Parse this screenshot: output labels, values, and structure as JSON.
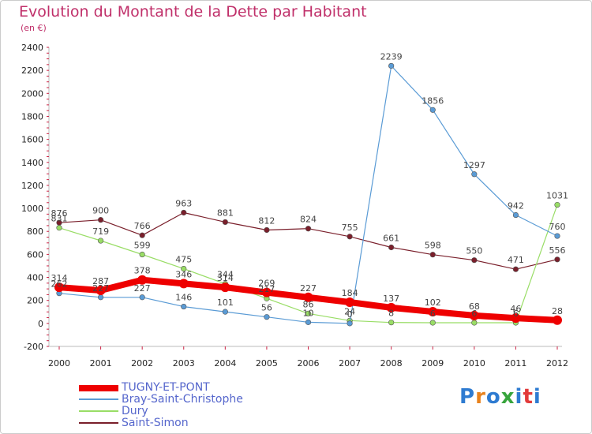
{
  "title": "Evolution du Montant de la Dette par Habitant",
  "subtitle": "(en €)",
  "brand": {
    "text": "Proxiti",
    "colors": [
      "#2e7bd1",
      "#e8821d",
      "#2e7bd1",
      "#37a43c",
      "#2e7bd1",
      "#e23a3a",
      "#2e7bd1"
    ]
  },
  "chart_data": {
    "type": "line",
    "x": [
      "2000",
      "2001",
      "2002",
      "2003",
      "2004",
      "2005",
      "2006",
      "2007",
      "2008",
      "2009",
      "2010",
      "2011",
      "2012"
    ],
    "ylim": [
      -200,
      2400
    ],
    "yticks": [
      -200,
      0,
      200,
      400,
      600,
      800,
      1000,
      1200,
      1400,
      1600,
      1800,
      2000,
      2200,
      2400
    ],
    "grid": false,
    "legend_position": "bottom-left",
    "series": [
      {
        "name": "TUGNY-ET-PONT",
        "color": "#ee0000",
        "width": 8,
        "values": [
          314,
          287,
          378,
          346,
          314,
          269,
          227,
          184,
          137,
          102,
          68,
          46,
          28
        ]
      },
      {
        "name": "Bray-Saint-Christophe",
        "color": "#5a9bd5",
        "width": 1.2,
        "values": [
          262,
          227,
          227,
          146,
          101,
          56,
          10,
          0,
          2239,
          1856,
          1297,
          942,
          760
        ]
      },
      {
        "name": "Dury",
        "color": "#99dd66",
        "width": 1.2,
        "values": [
          831,
          719,
          599,
          475,
          344,
          217,
          86,
          24,
          8,
          6,
          6,
          6,
          1031
        ]
      },
      {
        "name": "Saint-Simon",
        "color": "#7a1f2b",
        "width": 1.2,
        "values": [
          876,
          900,
          766,
          963,
          881,
          812,
          824,
          755,
          661,
          598,
          550,
          471,
          556
        ]
      }
    ]
  }
}
